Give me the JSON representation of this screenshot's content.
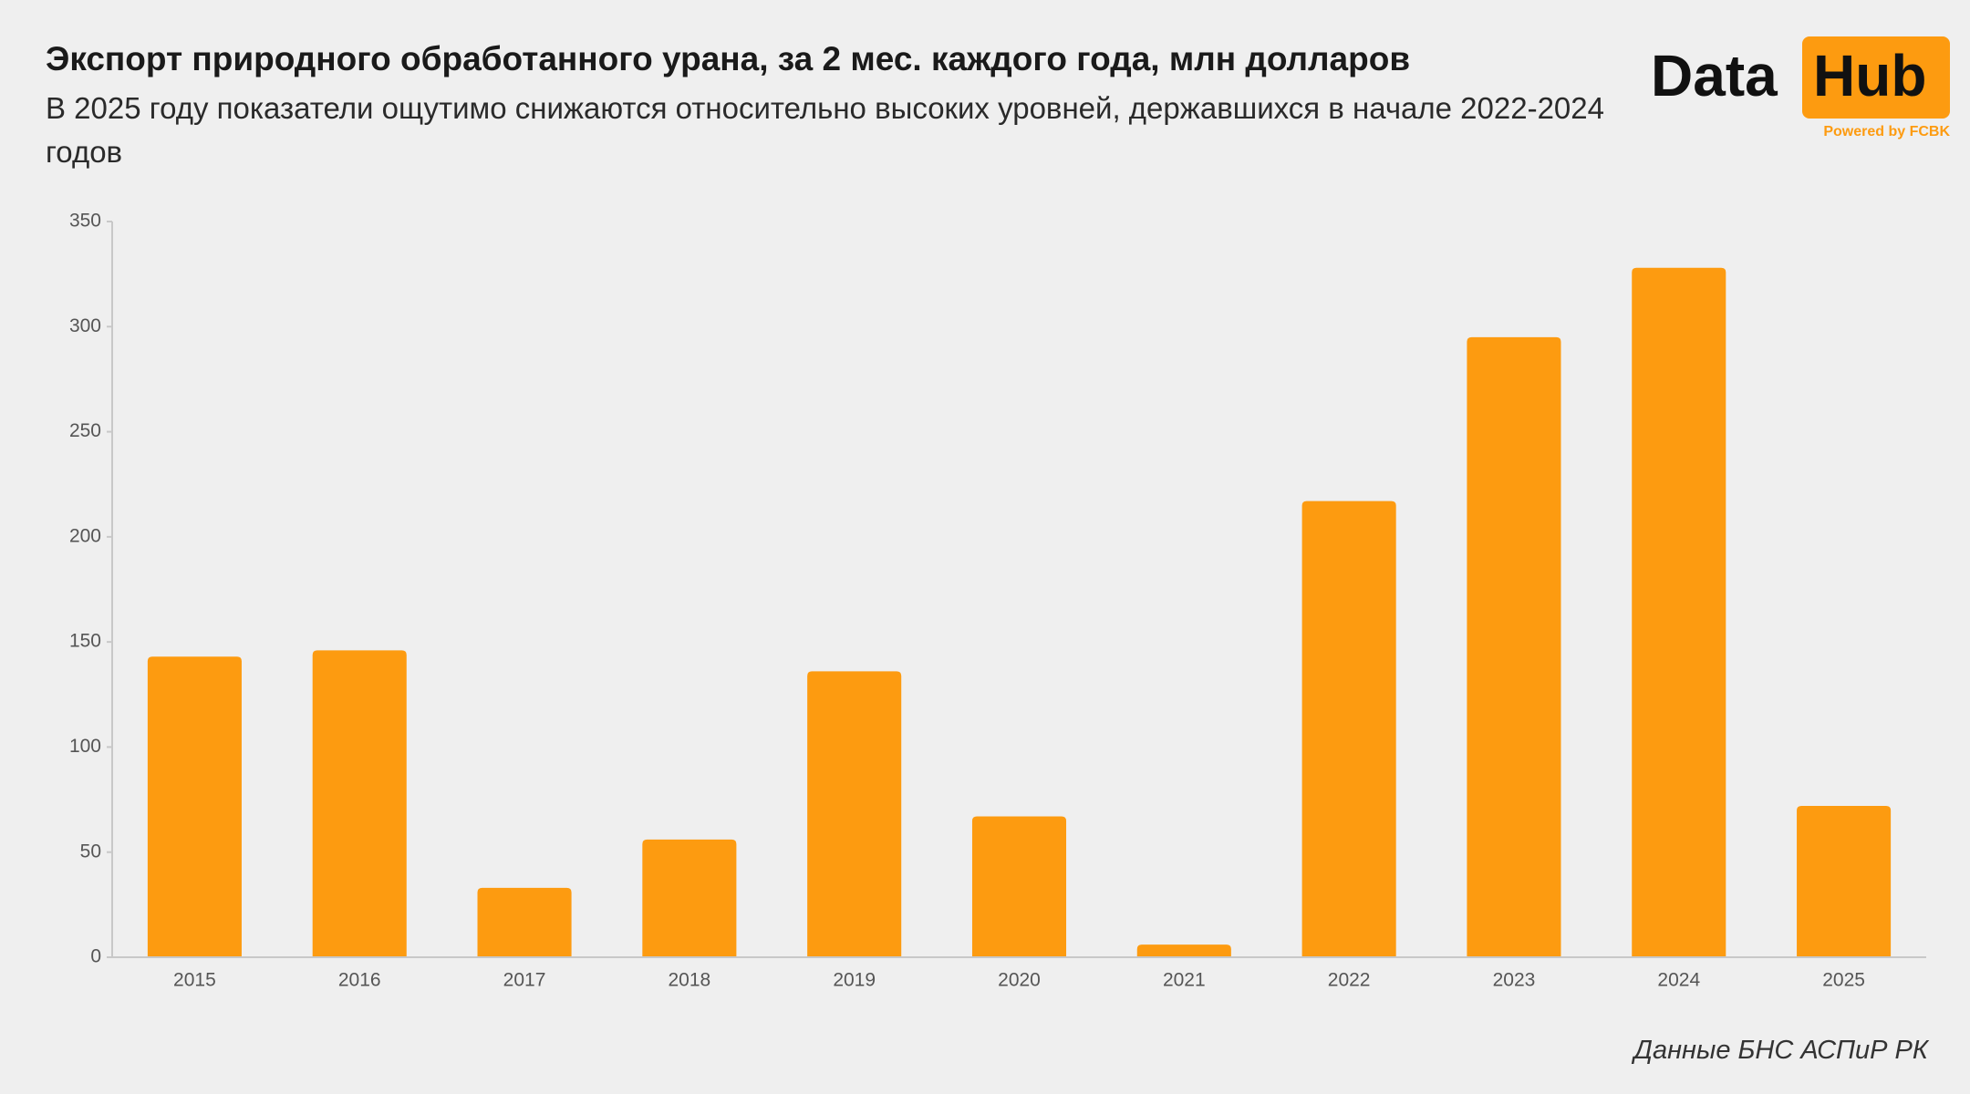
{
  "chart_data": {
    "type": "bar",
    "title": "Экспорт природного обработанного урана, за 2 мес. каждого года, млн долларов",
    "subtitle": "В 2025 году показатели ощутимо снижаются относительно высоких уровней, державшихся в начале 2022-2024 годов",
    "categories": [
      "2015",
      "2016",
      "2017",
      "2018",
      "2019",
      "2020",
      "2021",
      "2022",
      "2023",
      "2024",
      "2025"
    ],
    "values": [
      143,
      146,
      33,
      56,
      136,
      67,
      6,
      217,
      295,
      328,
      72
    ],
    "color": "#fd9b10",
    "ylim": [
      0,
      350
    ],
    "yticks": [
      0,
      50,
      100,
      150,
      200,
      250,
      300,
      350
    ],
    "source": "Данные БНС АСПиР РК"
  },
  "logo": {
    "word1": "Data",
    "word2": "Hub",
    "tagline": "Powered by FCBK"
  }
}
